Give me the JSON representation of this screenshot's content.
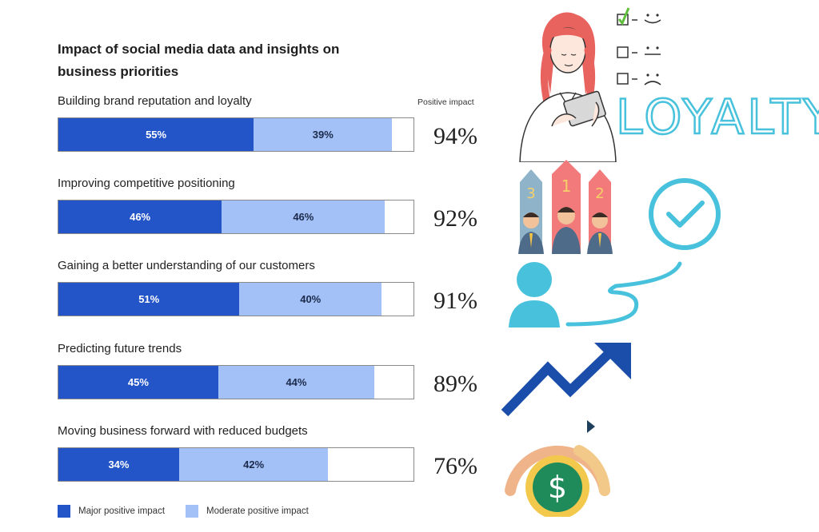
{
  "chart_data": {
    "type": "bar",
    "orientation": "horizontal",
    "stacked": true,
    "title": "Impact of social media data and insights on business priorities",
    "categories": [
      "Building brand reputation and loyalty",
      "Improving competitive positioning",
      "Gaining a better understanding of our customers",
      "Predicting future trends",
      "Moving business forward with reduced budgets"
    ],
    "series": [
      {
        "name": "Major positive impact",
        "values": [
          55,
          46,
          51,
          45,
          34
        ],
        "color": "#2354c8"
      },
      {
        "name": "Moderate positive impact",
        "values": [
          39,
          46,
          40,
          44,
          42
        ],
        "color": "#a3c1f6"
      }
    ],
    "totals_header": "Positive impact",
    "totals": [
      94,
      92,
      91,
      89,
      76
    ],
    "xlim": [
      0,
      100
    ],
    "unit": "%",
    "legend_position": "bottom-left",
    "grid": false
  },
  "decorations": {
    "loyalty_word": "LOYALTY",
    "ranking_numbers": [
      "3",
      "1",
      "2"
    ],
    "icons": [
      "woman-with-tablet-icon",
      "survey-checklist-icon",
      "ranking-podium-icon",
      "checkmark-circle-icon",
      "customer-journey-icon",
      "trend-arrow-icon",
      "budget-gauge-icon"
    ]
  }
}
